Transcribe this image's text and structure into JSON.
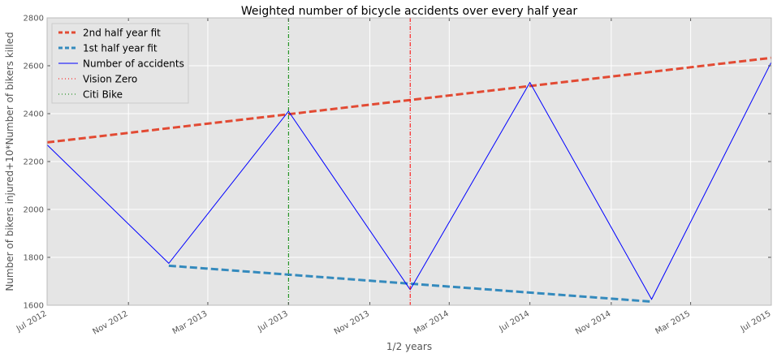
{
  "chart_data": {
    "type": "line",
    "title": "Weighted number of bicycle accidents over every half year",
    "xlabel": "1/2 years",
    "ylabel": "Number of bikers injured+10*Number of bikers killed",
    "xlim": [
      "2012-07-01",
      "2015-07-01"
    ],
    "ylim": [
      1600,
      2800
    ],
    "yticks": [
      1600,
      1800,
      2000,
      2200,
      2400,
      2600,
      2800
    ],
    "xticks": [
      {
        "date": "2012-07-01",
        "label": "Jul 2012"
      },
      {
        "date": "2012-11-01",
        "label": "Nov 2012"
      },
      {
        "date": "2013-03-01",
        "label": "Mar 2013"
      },
      {
        "date": "2013-07-01",
        "label": "Jul 2013"
      },
      {
        "date": "2013-11-01",
        "label": "Nov 2013"
      },
      {
        "date": "2014-03-01",
        "label": "Mar 2014"
      },
      {
        "date": "2014-07-01",
        "label": "Jul 2014"
      },
      {
        "date": "2014-11-01",
        "label": "Nov 2014"
      },
      {
        "date": "2015-03-01",
        "label": "Mar 2015"
      },
      {
        "date": "2015-07-01",
        "label": "Jul 2015"
      }
    ],
    "grid": true,
    "legend_position": "top-left",
    "series": [
      {
        "name": "2nd half year fit",
        "style": "dashed",
        "color": "#e24a33",
        "x": [
          "2012-07-01",
          "2015-07-01"
        ],
        "y": [
          2280,
          2633
        ]
      },
      {
        "name": "1st half year fit",
        "style": "dashed",
        "color": "#348abd",
        "x": [
          "2013-01-01",
          "2015-01-01"
        ],
        "y": [
          1765,
          1615
        ]
      },
      {
        "name": "Number of accidents",
        "style": "solid",
        "color": "#0000ff",
        "x": [
          "2012-07-01",
          "2013-01-01",
          "2013-07-01",
          "2014-01-01",
          "2014-07-01",
          "2015-01-01",
          "2015-07-01"
        ],
        "y": [
          2270,
          1775,
          2410,
          1665,
          2530,
          1625,
          2615
        ]
      },
      {
        "name": "Vision Zero",
        "style": "dashdot-vertical",
        "color": "#ff0000",
        "x": [
          "2014-01-01"
        ]
      },
      {
        "name": "Citi Bike",
        "style": "dashdot-vertical",
        "color": "#008000",
        "x": [
          "2013-07-01"
        ]
      }
    ]
  }
}
